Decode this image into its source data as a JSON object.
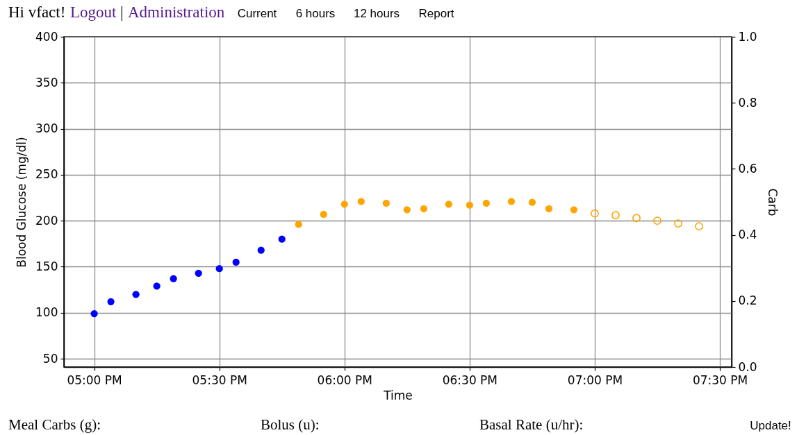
{
  "chart_data": {
    "type": "scatter",
    "xlabel": "Time",
    "ylabel": "Blood Glucose (mg/dl)",
    "y2label": "Carb",
    "xlim": [
      16.879,
      19.547
    ],
    "xticks": [
      {
        "value": 17,
        "label": "05:00 PM"
      },
      {
        "value": 17.5,
        "label": "05:30 PM"
      },
      {
        "value": 18,
        "label": "06:00 PM"
      },
      {
        "value": 18.5,
        "label": "06:30 PM"
      },
      {
        "value": 19,
        "label": "07:00 PM"
      },
      {
        "value": 19.5,
        "label": "07:30 PM"
      }
    ],
    "ylim": [
      41,
      400
    ],
    "yticks": [
      50,
      100,
      150,
      200,
      250,
      300,
      350,
      400
    ],
    "y2lim": [
      0,
      1
    ],
    "y2ticks": [
      {
        "value": 0,
        "label": "0.0"
      },
      0.2,
      0.4,
      0.6,
      0.8,
      {
        "value": 1,
        "label": "1.0"
      }
    ],
    "grid": true,
    "marker": "circle",
    "series": [
      {
        "color": "#0000ff",
        "x": [
          17,
          17.0667,
          17.1667,
          17.25,
          17.3167,
          17.4167,
          17.5,
          17.5667,
          17.6667,
          17.75
        ],
        "values": [
          99,
          112,
          120,
          129,
          137,
          143,
          148,
          155,
          168,
          180
        ]
      },
      {
        "color": "#ffa500",
        "x": [
          17.8167,
          17.9167,
          18,
          18.0667,
          18.1667,
          18.25,
          18.3167,
          18.4167,
          18.5,
          18.5667,
          18.6667,
          18.75,
          18.8167,
          18.9167
        ],
        "values": [
          196,
          207,
          218,
          221,
          219,
          212,
          213,
          218,
          217,
          219,
          221,
          220,
          213,
          212
        ]
      },
      {
        "color": "#ffa500",
        "marker": "circle-open",
        "x": [
          19,
          19.0833,
          19.1667,
          19.25,
          19.3333,
          19.4167
        ],
        "values": [
          208,
          206,
          203,
          200,
          197,
          194
        ]
      }
    ],
    "annotations": [
      "Hi vfact!",
      "Logout",
      "|",
      "Administration",
      "Current",
      "6 hours",
      "12 hours",
      "Report",
      "Meal Carbs (g):",
      "Bolus (u):",
      "Basal Rate (u/hr):",
      "Update!"
    ]
  }
}
